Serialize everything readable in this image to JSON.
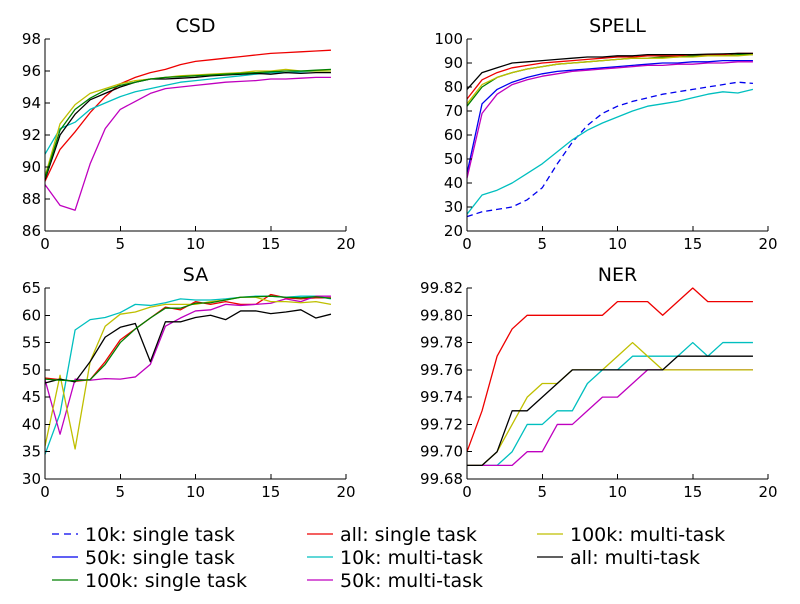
{
  "chart_data": [
    {
      "type": "line",
      "title": "CSD",
      "xlim": [
        0,
        20
      ],
      "ylim": [
        86,
        98
      ],
      "xticks": [
        0,
        5,
        10,
        15,
        20
      ],
      "yticks": [
        86,
        88,
        90,
        92,
        94,
        96,
        98
      ],
      "x": [
        0,
        1,
        2,
        3,
        4,
        5,
        6,
        7,
        8,
        9,
        10,
        11,
        12,
        13,
        14,
        15,
        16,
        17,
        18,
        19
      ],
      "series": [
        {
          "name": "all: single task",
          "values": [
            89.1,
            91.1,
            92.2,
            93.4,
            94.4,
            95.2,
            95.6,
            95.9,
            96.1,
            96.4,
            96.6,
            96.7,
            96.8,
            96.9,
            97.0,
            97.1,
            97.15,
            97.2,
            97.25,
            97.3
          ]
        },
        {
          "name": "10k: multi-task",
          "values": [
            90.8,
            92.4,
            92.8,
            93.6,
            94.0,
            94.4,
            94.7,
            94.9,
            95.1,
            95.3,
            95.4,
            95.5,
            95.6,
            95.7,
            95.8,
            95.9,
            95.9,
            95.95,
            96.0,
            96.0
          ]
        },
        {
          "name": "50k: multi-task",
          "values": [
            88.9,
            87.6,
            87.3,
            90.2,
            92.4,
            93.6,
            94.1,
            94.6,
            94.9,
            95.0,
            95.1,
            95.2,
            95.3,
            95.35,
            95.4,
            95.5,
            95.5,
            95.55,
            95.6,
            95.6
          ]
        },
        {
          "name": "100k: multi-task",
          "values": [
            89.4,
            92.7,
            93.9,
            94.6,
            94.9,
            95.2,
            95.4,
            95.5,
            95.6,
            95.7,
            95.75,
            95.8,
            95.85,
            95.9,
            96.0,
            96.0,
            96.1,
            96.0,
            96.0,
            96.0
          ]
        },
        {
          "name": "all: multi-task",
          "values": [
            89.2,
            92.0,
            93.3,
            94.2,
            94.6,
            95.0,
            95.3,
            95.5,
            95.5,
            95.55,
            95.6,
            95.7,
            95.75,
            95.8,
            95.85,
            95.8,
            95.9,
            95.85,
            95.9,
            95.9
          ]
        },
        {
          "name": "100k: single task",
          "values": [
            89.3,
            92.3,
            93.6,
            94.3,
            94.8,
            95.1,
            95.3,
            95.5,
            95.6,
            95.65,
            95.7,
            95.75,
            95.8,
            95.85,
            95.9,
            95.95,
            96.0,
            96.0,
            96.05,
            96.1
          ]
        }
      ]
    },
    {
      "type": "line",
      "title": "SPELL",
      "xlim": [
        0,
        20
      ],
      "ylim": [
        20,
        100
      ],
      "xticks": [
        0,
        5,
        10,
        15,
        20
      ],
      "yticks": [
        20,
        30,
        40,
        50,
        60,
        70,
        80,
        90,
        100
      ],
      "x": [
        0,
        1,
        2,
        3,
        4,
        5,
        6,
        7,
        8,
        9,
        10,
        11,
        12,
        13,
        14,
        15,
        16,
        17,
        18,
        19
      ],
      "series": [
        {
          "name": "10k: single task",
          "values": [
            26,
            28,
            29,
            30,
            33,
            38,
            48,
            57,
            64,
            69,
            72,
            74,
            75.5,
            77,
            78,
            79,
            80,
            81,
            82,
            81.5
          ]
        },
        {
          "name": "50k: single task",
          "values": [
            44,
            73,
            79,
            82,
            84,
            85.5,
            86.5,
            87,
            87.5,
            88,
            88.5,
            89,
            89.5,
            90,
            90,
            90.5,
            90.5,
            91,
            91,
            91
          ]
        },
        {
          "name": "100k: single task",
          "values": [
            72,
            80,
            84,
            86,
            87.5,
            88.5,
            89.5,
            90,
            90.5,
            91,
            91.5,
            92,
            92,
            92.5,
            92.5,
            93,
            93,
            93,
            93.5,
            93.5
          ]
        },
        {
          "name": "all: single task",
          "values": [
            75,
            83,
            86,
            88,
            89,
            90,
            90.5,
            91,
            91.5,
            92,
            92.5,
            92.5,
            93,
            93,
            93,
            93.5,
            93.5,
            93.5,
            94,
            94
          ]
        },
        {
          "name": "10k: multi-task",
          "values": [
            27,
            35,
            37,
            40,
            44,
            48,
            53,
            58,
            62,
            65,
            67.5,
            70,
            72,
            73,
            74,
            75.5,
            77,
            78,
            77.5,
            79
          ]
        },
        {
          "name": "50k: multi-task",
          "values": [
            42,
            69,
            77,
            81,
            83,
            84.5,
            85.5,
            86.5,
            87,
            87.5,
            88,
            88.5,
            89,
            89,
            89.5,
            89.5,
            90,
            90,
            90.5,
            90.5
          ]
        },
        {
          "name": "100k: multi-task",
          "values": [
            73,
            81,
            84,
            86,
            87.5,
            88.5,
            89.5,
            90,
            90.5,
            91,
            91.5,
            92,
            92,
            92,
            92.5,
            92.5,
            93,
            93,
            93,
            93.5
          ]
        },
        {
          "name": "all: multi-task",
          "values": [
            79,
            86,
            88,
            90,
            90.5,
            91,
            91.5,
            92,
            92.5,
            92.5,
            93,
            93,
            93.5,
            93.5,
            93.5,
            93.5,
            93.7,
            93.8,
            94,
            94
          ]
        }
      ]
    },
    {
      "type": "line",
      "title": "SA",
      "xlim": [
        0,
        20
      ],
      "ylim": [
        30,
        65
      ],
      "xticks": [
        0,
        5,
        10,
        15,
        20
      ],
      "yticks": [
        30,
        35,
        40,
        45,
        50,
        55,
        60,
        65
      ],
      "x": [
        0,
        1,
        2,
        3,
        4,
        5,
        6,
        7,
        8,
        9,
        10,
        11,
        12,
        13,
        14,
        15,
        16,
        17,
        18,
        19
      ],
      "series": [
        {
          "name": "all: single task",
          "values": [
            48.5,
            48.2,
            47.9,
            48.2,
            51.5,
            55.5,
            57.5,
            59.5,
            61.5,
            61,
            62.5,
            62,
            62.5,
            62,
            62,
            63.8,
            63.2,
            63,
            63.2,
            63.2
          ]
        },
        {
          "name": "10k: multi-task",
          "values": [
            34.5,
            42,
            57.3,
            59.2,
            59.6,
            60.5,
            62,
            61.8,
            62.3,
            63,
            62.8,
            62.8,
            63,
            63.3,
            63.5,
            63.5,
            63.3,
            63.5,
            63.5,
            63
          ]
        },
        {
          "name": "50k: multi-task",
          "values": [
            48.2,
            38.2,
            48.3,
            48.1,
            48.4,
            48.3,
            48.7,
            51,
            58,
            59.5,
            60.8,
            61,
            62,
            61.8,
            62,
            62.2,
            63,
            62.5,
            63.5,
            63.5
          ]
        },
        {
          "name": "100k: multi-task",
          "values": [
            36,
            49,
            35.5,
            51.5,
            58,
            60.2,
            60.6,
            61.5,
            62,
            62,
            62,
            62.5,
            62.8,
            63.3,
            63.3,
            62.5,
            62.5,
            62.3,
            62.5,
            62
          ]
        },
        {
          "name": "all: multi-task",
          "values": [
            47.6,
            48.3,
            47.8,
            51.5,
            56,
            57.8,
            58.5,
            51.5,
            58.8,
            58.8,
            59.6,
            60,
            59.2,
            60.8,
            60.8,
            60.3,
            60.6,
            61,
            59.5,
            60.2
          ]
        },
        {
          "name": "100k: single task",
          "values": [
            48.3,
            48.1,
            48.0,
            48.2,
            51,
            55,
            57.5,
            59.5,
            61.3,
            61.3,
            62.2,
            62.3,
            62.8,
            63.3,
            63.4,
            63.5,
            63.3,
            63.2,
            63.4,
            63.1
          ]
        }
      ]
    },
    {
      "type": "line",
      "title": "NER",
      "xlim": [
        0,
        20
      ],
      "ylim": [
        99.68,
        99.82
      ],
      "xticks": [
        0,
        5,
        10,
        15,
        20
      ],
      "yticks": [
        99.68,
        99.7,
        99.72,
        99.74,
        99.76,
        99.78,
        99.8,
        99.82
      ],
      "ytick_labels": [
        "99.68",
        "99.70",
        "99.72",
        "99.74",
        "99.76",
        "99.78",
        "99.80",
        "99.82"
      ],
      "x": [
        0,
        1,
        2,
        3,
        4,
        5,
        6,
        7,
        8,
        9,
        10,
        11,
        12,
        13,
        14,
        15,
        16,
        17,
        18,
        19
      ],
      "series": [
        {
          "name": "all: single task",
          "values": [
            99.7,
            99.73,
            99.77,
            99.79,
            99.8,
            99.8,
            99.8,
            99.8,
            99.8,
            99.8,
            99.81,
            99.81,
            99.81,
            99.8,
            99.81,
            99.82,
            99.81,
            99.81,
            99.81,
            99.81
          ]
        },
        {
          "name": "10k: multi-task",
          "values": [
            99.69,
            99.69,
            99.69,
            99.7,
            99.72,
            99.72,
            99.73,
            99.73,
            99.75,
            99.76,
            99.76,
            99.77,
            99.77,
            99.77,
            99.77,
            99.78,
            99.77,
            99.78,
            99.78,
            99.78
          ]
        },
        {
          "name": "50k: multi-task",
          "values": [
            99.69,
            99.69,
            99.69,
            99.69,
            99.7,
            99.7,
            99.72,
            99.72,
            99.73,
            99.74,
            99.74,
            99.75,
            99.76,
            99.76,
            99.76,
            99.76,
            99.76,
            99.76,
            99.76,
            99.76
          ]
        },
        {
          "name": "100k: multi-task",
          "values": [
            99.69,
            99.69,
            99.7,
            99.72,
            99.74,
            99.75,
            99.75,
            99.76,
            99.76,
            99.76,
            99.77,
            99.78,
            99.77,
            99.76,
            99.76,
            99.76,
            99.76,
            99.76,
            99.76,
            99.76
          ]
        },
        {
          "name": "all: multi-task",
          "values": [
            99.69,
            99.69,
            99.7,
            99.73,
            99.73,
            99.74,
            99.75,
            99.76,
            99.76,
            99.76,
            99.76,
            99.76,
            99.76,
            99.76,
            99.77,
            99.77,
            99.77,
            99.77,
            99.77,
            99.77
          ]
        }
      ]
    }
  ],
  "legend": {
    "placement": "bottom",
    "entries": [
      {
        "label": "10k: single task",
        "color": "#0000ee",
        "dash": true
      },
      {
        "label": "all: single task",
        "color": "#ee0000",
        "dash": false
      },
      {
        "label": "100k: multi-task",
        "color": "#bfbf00",
        "dash": false
      },
      {
        "label": "50k: single task",
        "color": "#0000ee",
        "dash": false
      },
      {
        "label": "10k: multi-task",
        "color": "#00bfbf",
        "dash": false
      },
      {
        "label": "all: multi-task",
        "color": "#000000",
        "dash": false
      },
      {
        "label": "100k: single task",
        "color": "#008000",
        "dash": false
      },
      {
        "label": "50k: multi-task",
        "color": "#bf00bf",
        "dash": false
      }
    ]
  }
}
